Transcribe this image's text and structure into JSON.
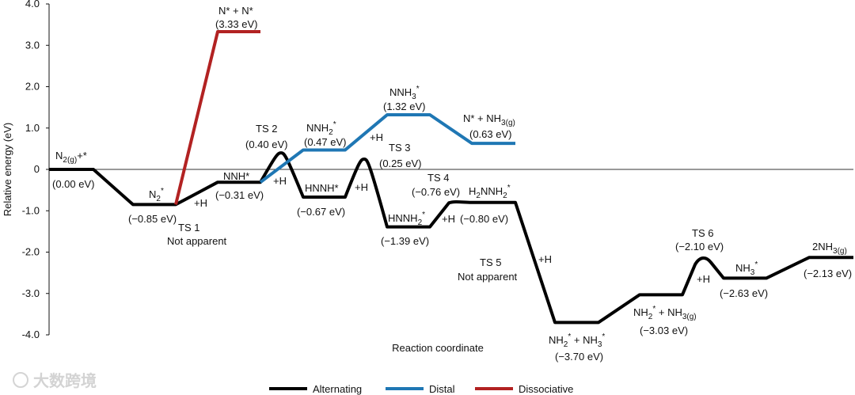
{
  "chart_data": {
    "type": "line",
    "title": "",
    "xlabel": "Reaction coordinate",
    "ylabel": "Relative energy (eV)",
    "ylim": [
      -4.0,
      4.0
    ],
    "yticks": [
      "4.0",
      "3.0",
      "2.0",
      "1.0",
      "0",
      "-1.0",
      "-2.0",
      "-3.0",
      "-4.0"
    ],
    "grid": false,
    "zero_line": true,
    "legend_position": "bottom-center",
    "colors": {
      "alternating": "#000000",
      "distal": "#1f77b4",
      "dissociative": "#b22222"
    },
    "series": [
      {
        "name": "Alternating",
        "states": [
          {
            "label": "N2(g)+*",
            "energy": 0.0
          },
          {
            "label": "N2*",
            "energy": -0.85
          },
          {
            "label": "NNH*",
            "energy": -0.31
          },
          {
            "label": "TS 2",
            "energy": 0.4
          },
          {
            "label": "HNNH*",
            "energy": -0.67
          },
          {
            "label": "TS 3",
            "energy": 0.25
          },
          {
            "label": "HNNH2*",
            "energy": -1.39
          },
          {
            "label": "TS 4",
            "energy": -0.76
          },
          {
            "label": "H2NNH2*",
            "energy": -0.8
          },
          {
            "label": "NH2* + NH3*",
            "energy": -3.7
          },
          {
            "label": "NH2* + NH3(g)",
            "energy": -3.03
          },
          {
            "label": "TS 6",
            "energy": -2.1
          },
          {
            "label": "NH3*",
            "energy": -2.63
          },
          {
            "label": "2NH3(g)",
            "energy": -2.13
          }
        ]
      },
      {
        "name": "Distal",
        "states": [
          {
            "label": "NNH*",
            "energy": -0.31
          },
          {
            "label": "NNH2*",
            "energy": 0.47
          },
          {
            "label": "NNH3*",
            "energy": 1.32
          },
          {
            "label": "N* + NH3(g)",
            "energy": 0.63
          }
        ]
      },
      {
        "name": "Dissociative",
        "states": [
          {
            "label": "N2*",
            "energy": -0.85
          },
          {
            "label": "N* + N*",
            "energy": 3.33
          }
        ]
      }
    ],
    "annotations": {
      "n2g": "(0.00 eV)",
      "n2s": "(−0.85 eV)",
      "ts1a": "TS 1",
      "ts1b": "Not apparent",
      "nnh": "(−0.31 eV)",
      "ts2a": "TS 2",
      "ts2b": "(0.40 eV)",
      "hnnh": "(−0.67 eV)",
      "ts3a": "TS 3",
      "ts3b": "(0.25 eV)",
      "hnnh2": "(−1.39 eV)",
      "ts4a": "TS 4",
      "ts4b": "(−0.76 eV)",
      "h2nnh2": "(−0.80 eV)",
      "ts5a": "TS 5",
      "ts5b": "Not apparent",
      "nh2nh3s": "(−3.70 eV)",
      "nh2nh3g": "(−3.03 eV)",
      "ts6a": "TS 6",
      "ts6b": "(−2.10 eV)",
      "nh3s": "(−2.63 eV)",
      "nh3g2": "(−2.13 eV)",
      "nn": "N* + N*",
      "nnv": "(3.33 eV)",
      "nnh2": "(0.47 eV)",
      "nnh3": "(1.32 eV)",
      "nnh3g": "(0.63 eV)",
      "plus_h": "+H"
    },
    "legend": [
      "Alternating",
      "Distal",
      "Dissociative"
    ]
  },
  "watermark": "大数跨境"
}
